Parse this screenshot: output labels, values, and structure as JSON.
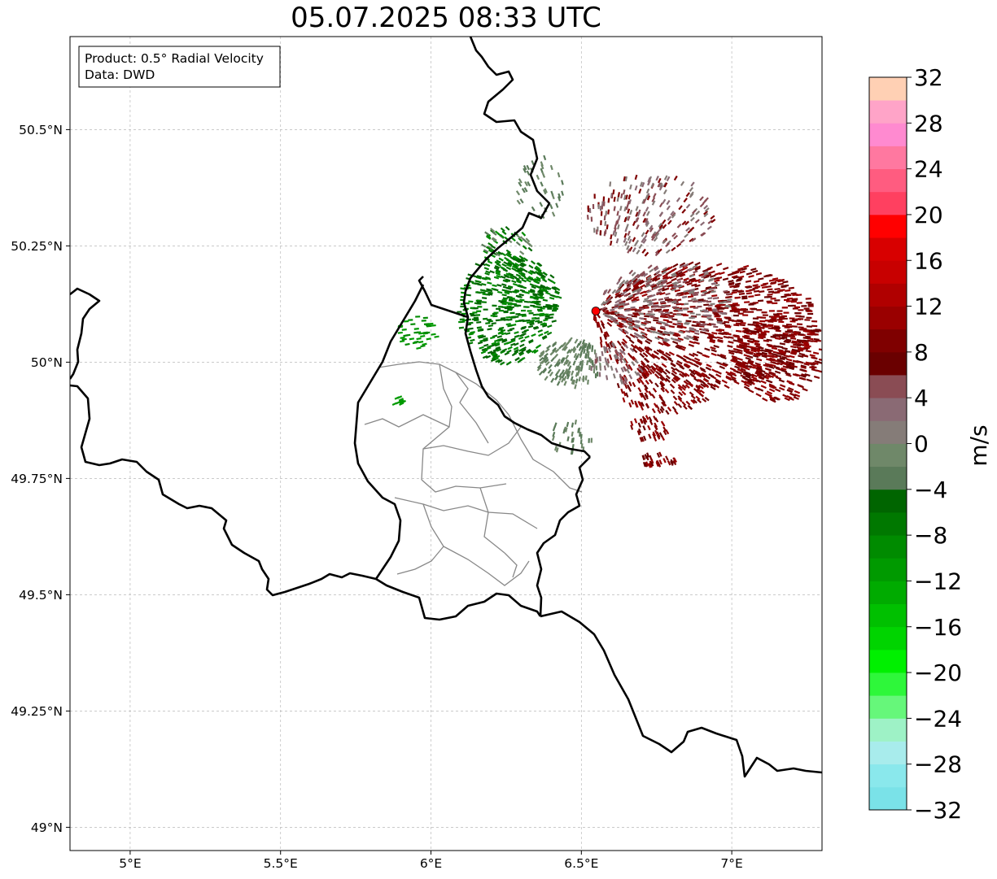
{
  "title": "05.07.2025 08:33 UTC",
  "info_box": {
    "product": "Product: 0.5° Radial Velocity",
    "data": "Data: DWD"
  },
  "map": {
    "lon_range": [
      4.8,
      7.3
    ],
    "lat_range": [
      48.95,
      50.7
    ],
    "lon_ticks": [
      {
        "value": 5.0,
        "label": "5°E"
      },
      {
        "value": 5.5,
        "label": "5.5°E"
      },
      {
        "value": 6.0,
        "label": "6°E"
      },
      {
        "value": 6.5,
        "label": "6.5°E"
      },
      {
        "value": 7.0,
        "label": "7°E"
      }
    ],
    "lat_ticks": [
      {
        "value": 50.5,
        "label": "50.5°N"
      },
      {
        "value": 50.25,
        "label": "50.25°N"
      },
      {
        "value": 50.0,
        "label": "50°N"
      },
      {
        "value": 49.75,
        "label": "49.75°N"
      },
      {
        "value": 49.5,
        "label": "49.5°N"
      },
      {
        "value": 49.25,
        "label": "49.25°N"
      },
      {
        "value": 49.0,
        "label": "49°N"
      }
    ],
    "grid": true,
    "radar_site": {
      "lon": 6.548,
      "lat": 50.11,
      "color": "#ff0000"
    }
  },
  "colorbar": {
    "label": "m/s",
    "vmin": -32,
    "vmax": 32,
    "ticks": [
      {
        "value": 32,
        "label": "32"
      },
      {
        "value": 28,
        "label": "28"
      },
      {
        "value": 24,
        "label": "24"
      },
      {
        "value": 20,
        "label": "20"
      },
      {
        "value": 16,
        "label": "16"
      },
      {
        "value": 12,
        "label": "12"
      },
      {
        "value": 8,
        "label": "8"
      },
      {
        "value": 4,
        "label": "4"
      },
      {
        "value": 0,
        "label": "0"
      },
      {
        "value": -4,
        "label": "−4"
      },
      {
        "value": -8,
        "label": "−8"
      },
      {
        "value": -12,
        "label": "−12"
      },
      {
        "value": -16,
        "label": "−16"
      },
      {
        "value": -20,
        "label": "−20"
      },
      {
        "value": -24,
        "label": "−24"
      },
      {
        "value": -28,
        "label": "−28"
      },
      {
        "value": -32,
        "label": "−32"
      }
    ],
    "colors": [
      "#7ae2e8",
      "#8ae8ec",
      "#a8ecec",
      "#9ef2c6",
      "#66f77a",
      "#2ef73a",
      "#00f000",
      "#00d400",
      "#00c000",
      "#00ab00",
      "#009a00",
      "#008b00",
      "#007800",
      "#006500",
      "#5a7a59",
      "#6f8869",
      "#857c78",
      "#8a6a74",
      "#8a4c54",
      "#6a0000",
      "#7f0000",
      "#9a0000",
      "#b00000",
      "#c80000",
      "#d80000",
      "#ff0000",
      "#ff4060",
      "#ff5c80",
      "#ff78a0",
      "#ff8ad0",
      "#ffa4c8",
      "#ffd0b4"
    ]
  }
}
